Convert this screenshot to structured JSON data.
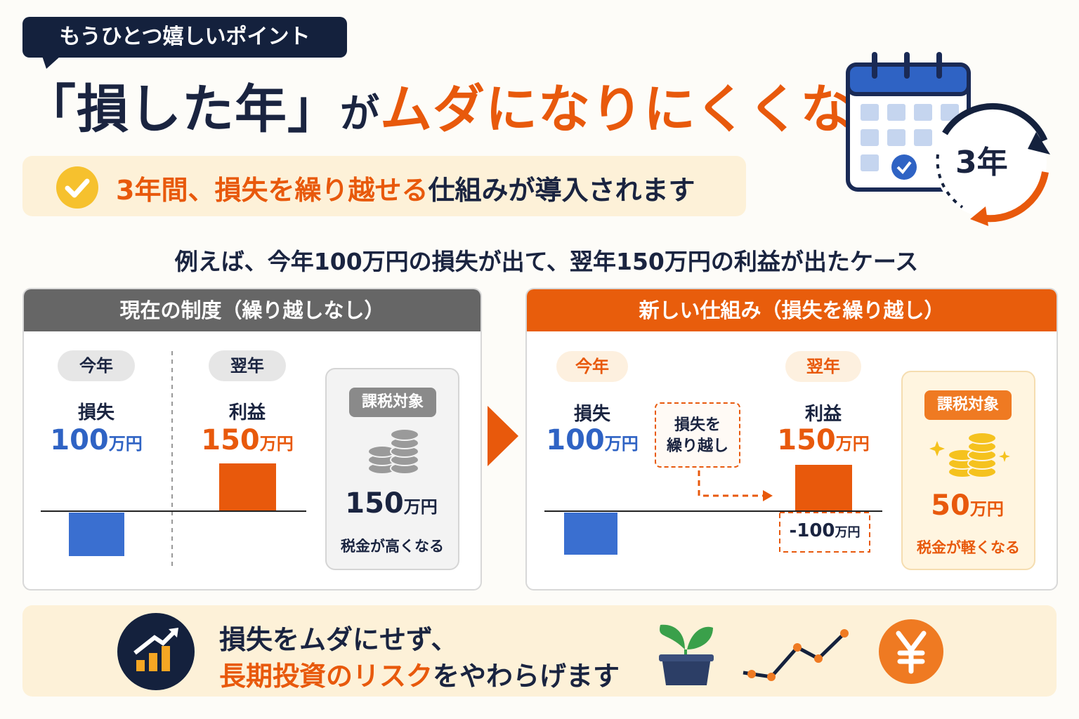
{
  "badge": "もうひとつ嬉しいポイント",
  "title": {
    "bracket": "「損した年」",
    "particle": "が",
    "highlight": "ムダになりにくくなる"
  },
  "subtitle": {
    "highlight": "3年間、損失を繰り越せる",
    "rest": "仕組みが導入されます"
  },
  "icon_label": "3年",
  "example": "例えば、今年100万円の損失が出て、翌年150万円の利益が出たケース",
  "unit": "万円",
  "current": {
    "header": "現在の制度（繰り越しなし）",
    "this_year": "今年",
    "next_year": "翌年",
    "loss_label": "損失",
    "loss_amount": 100,
    "profit_label": "利益",
    "profit_amount": 150,
    "taxable_label": "課税対象",
    "taxable_amount": 150,
    "tax_note": "税金が高くなる"
  },
  "new": {
    "header": "新しい仕組み（損失を繰り越し）",
    "this_year": "今年",
    "next_year": "翌年",
    "loss_label": "損失",
    "loss_amount": 100,
    "carry_note": [
      "損失を",
      "繰り越し"
    ],
    "profit_label": "利益",
    "profit_amount": 150,
    "offset_amount": -100,
    "taxable_label": "課税対象",
    "taxable_amount": 50,
    "tax_note": "税金が軽くなる"
  },
  "footer": {
    "line1": "損失をムダにせず、",
    "highlight": "長期投資のリスク",
    "rest": "をやわらげます"
  }
}
